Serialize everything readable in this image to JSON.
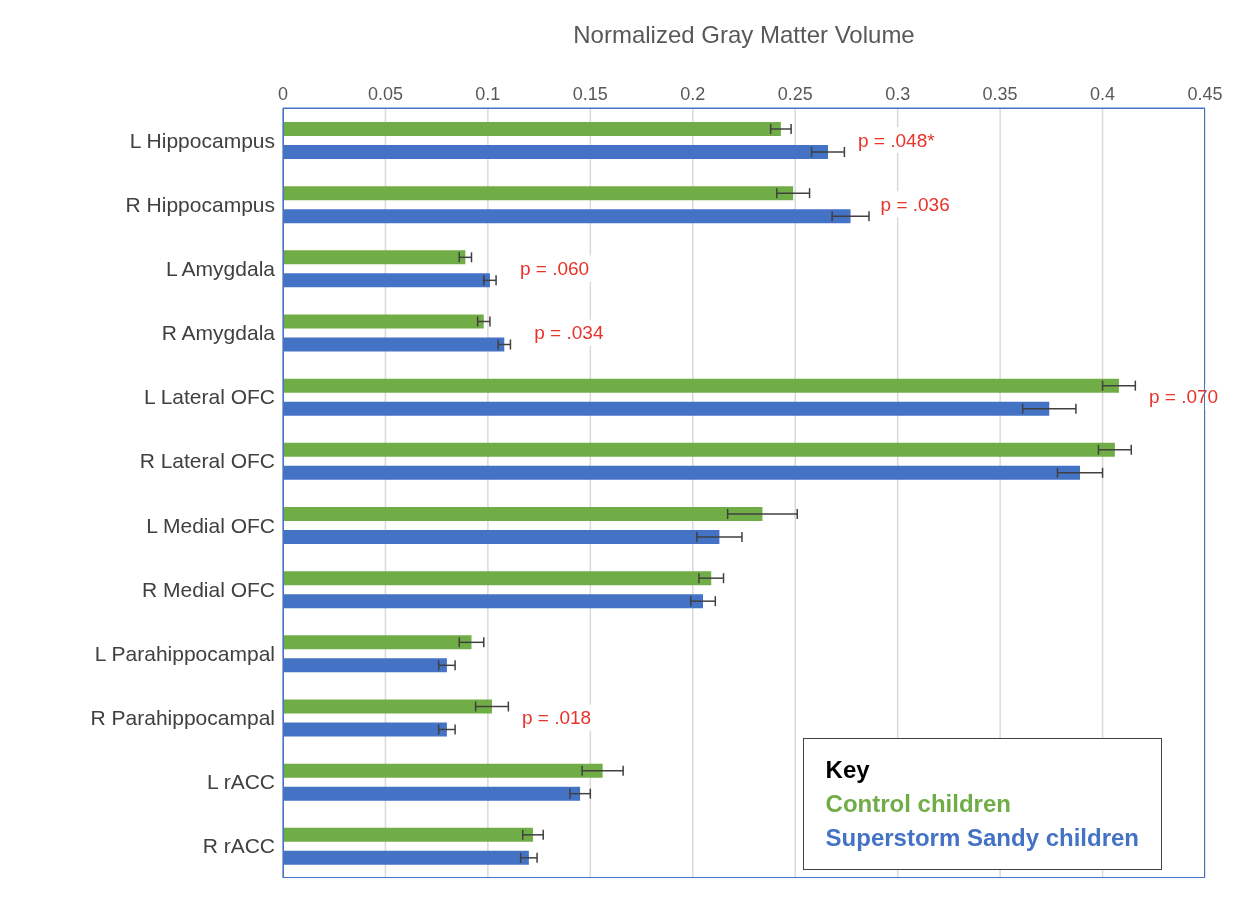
{
  "chart_data": {
    "type": "bar",
    "orientation": "horizontal",
    "xlabel": "Normalized Gray Matter Volume",
    "categories": [
      "L Hippocampus",
      "R Hippocampus",
      "L Amygdala",
      "R Amygdala",
      "L Lateral OFC",
      "R Lateral OFC",
      "L Medial OFC",
      "R Medial OFC",
      "L Parahippocampal",
      "R Parahippocampal",
      "L rACC",
      "R rACC"
    ],
    "series": [
      {
        "name": "Control children",
        "color": "#70ad47",
        "values": [
          0.243,
          0.249,
          0.089,
          0.098,
          0.408,
          0.406,
          0.234,
          0.209,
          0.092,
          0.102,
          0.156,
          0.122
        ],
        "errors": [
          0.005,
          0.008,
          0.003,
          0.003,
          0.008,
          0.008,
          0.017,
          0.006,
          0.006,
          0.008,
          0.01,
          0.005
        ]
      },
      {
        "name": "Superstorm Sandy children",
        "color": "#4472c4",
        "values": [
          0.266,
          0.277,
          0.101,
          0.108,
          0.374,
          0.389,
          0.213,
          0.205,
          0.08,
          0.08,
          0.145,
          0.12
        ],
        "errors": [
          0.008,
          0.009,
          0.003,
          0.003,
          0.013,
          0.011,
          0.011,
          0.006,
          0.004,
          0.004,
          0.005,
          0.004
        ]
      }
    ],
    "xlim": [
      0,
      0.45
    ],
    "xticks": [
      0,
      0.05,
      0.1,
      0.15,
      0.2,
      0.25,
      0.3,
      0.35,
      0.4,
      0.45
    ],
    "grid": "x",
    "legend": "bottom right",
    "legend_title": "Key",
    "annotations": [
      {
        "text": "p = .048*",
        "x": 0.266,
        "y": "L Hippocampus"
      },
      {
        "text": "p = .036",
        "x": 0.277,
        "y": "R Hippocampus"
      },
      {
        "text": "p = .060",
        "x": 0.101,
        "y": "L Amygdala"
      },
      {
        "text": "p = .034",
        "x": 0.108,
        "y": "R Amygdala"
      },
      {
        "text": "p = .070",
        "x": 0.408,
        "y": "L Lateral OFC"
      },
      {
        "text": "p = .018",
        "x": 0.102,
        "y": "R Parahippocampal"
      }
    ]
  }
}
